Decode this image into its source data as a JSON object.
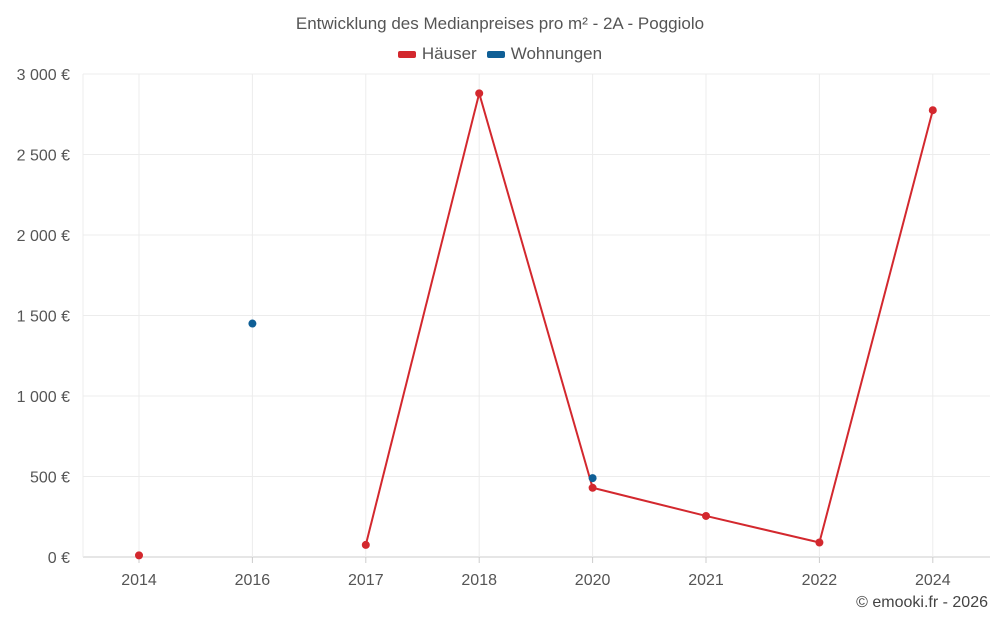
{
  "chart_data": {
    "type": "line",
    "title": "Entwicklung des Medianpreises pro m² - 2A - Poggiolo",
    "xlabel": "",
    "ylabel": "",
    "categories": [
      "2014",
      "2016",
      "2017",
      "2018",
      "2020",
      "2021",
      "2022",
      "2024"
    ],
    "y_tick_labels": [
      "0 €",
      "500 €",
      "1 000 €",
      "1 500 €",
      "2 000 €",
      "2 500 €",
      "3 000 €"
    ],
    "y_ticks": [
      0,
      500,
      1000,
      1500,
      2000,
      2500,
      3000
    ],
    "ylim": [
      0,
      3000
    ],
    "grid": true,
    "legend_position": "top-center",
    "series": [
      {
        "name": "Häuser",
        "color": "#d3282e",
        "values": [
          10,
          null,
          75,
          2880,
          430,
          255,
          90,
          2775
        ]
      },
      {
        "name": "Wohnungen",
        "color": "#0f5f96",
        "values": [
          null,
          1450,
          null,
          null,
          490,
          null,
          null,
          null
        ]
      }
    ]
  },
  "credit": "© emooki.fr - 2026"
}
